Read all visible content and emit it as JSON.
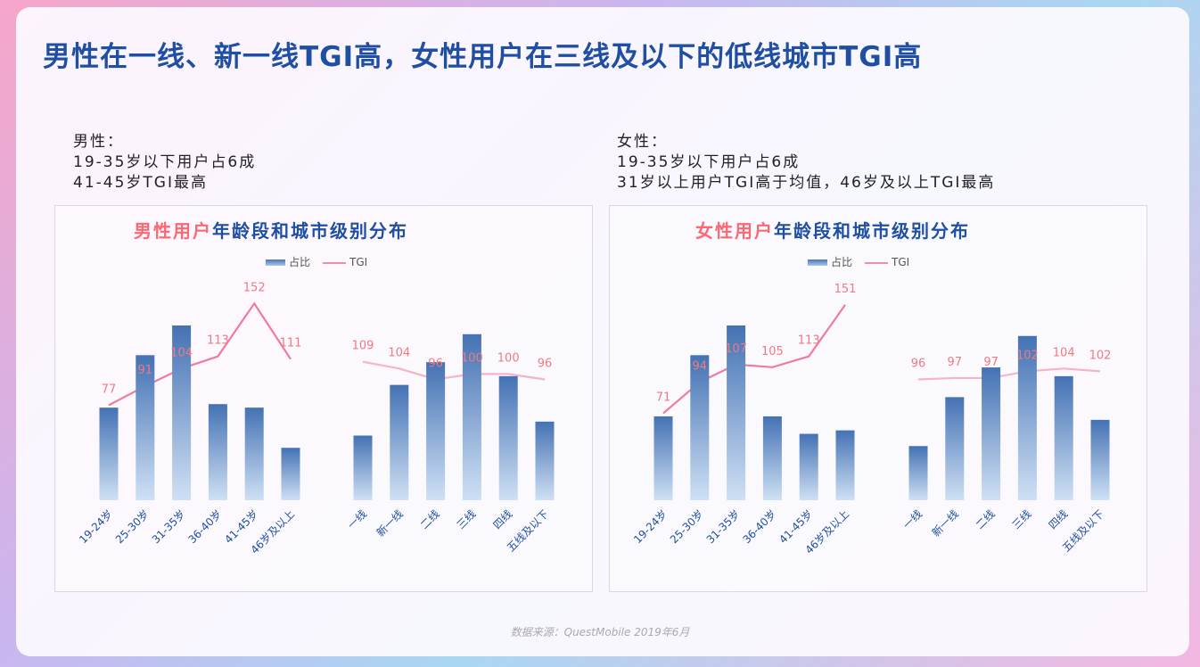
{
  "page": {
    "title": "男性在一线、新一线TGI高，女性用户在三线及以下的低线城市TGI高",
    "source": "数据来源：QuestMobile 2019年6月"
  },
  "notes": {
    "male": [
      "男性：",
      "19-35岁以下用户占6成",
      "41-45岁TGI最高"
    ],
    "female": [
      "女性：",
      "19-35岁以下用户占6成",
      "31岁以上用户TGI高于均值，46岁及以上TGI最高"
    ]
  },
  "legend": {
    "bar": "占比",
    "line": "TGI"
  },
  "colors": {
    "bar_top": "#4472b4",
    "bar_bottom": "#cfe0f4",
    "line": "#f07aa0",
    "label": "#f07a80",
    "title_accent": "#ff6673",
    "title_main": "#1f4fa3"
  },
  "chart_data": [
    {
      "type": "bar",
      "title_highlight": "男性用户",
      "title_rest": "年龄段和城市级别分布",
      "groups": [
        {
          "categories": [
            "19-24岁",
            "25-30岁",
            "31-35岁",
            "36-40岁",
            "41-45岁",
            "46岁及以上"
          ],
          "share_relative": [
            0.53,
            0.83,
            1.0,
            0.55,
            0.53,
            0.3
          ],
          "tgi": [
            77,
            91,
            104,
            113,
            152,
            111
          ]
        },
        {
          "categories": [
            "一线",
            "新一线",
            "二线",
            "三线",
            "四线",
            "五线及以下"
          ],
          "share_relative": [
            0.37,
            0.66,
            0.79,
            0.95,
            0.71,
            0.45
          ],
          "tgi": [
            109,
            104,
            96,
            100,
            100,
            96
          ]
        }
      ]
    },
    {
      "type": "bar",
      "title_highlight": "女性用户",
      "title_rest": "年龄段和城市级别分布",
      "groups": [
        {
          "categories": [
            "19-24岁",
            "25-30岁",
            "31-35岁",
            "36-40岁",
            "41-45岁",
            "46岁及以上"
          ],
          "share_relative": [
            0.48,
            0.83,
            1.0,
            0.48,
            0.38,
            0.4
          ],
          "tgi": [
            71,
            94,
            107,
            105,
            113,
            151
          ]
        },
        {
          "categories": [
            "一线",
            "新一线",
            "二线",
            "三线",
            "四线",
            "五线及以下"
          ],
          "share_relative": [
            0.31,
            0.59,
            0.76,
            0.94,
            0.71,
            0.46
          ],
          "tgi": [
            96,
            97,
            97,
            102,
            104,
            102
          ]
        }
      ]
    }
  ]
}
